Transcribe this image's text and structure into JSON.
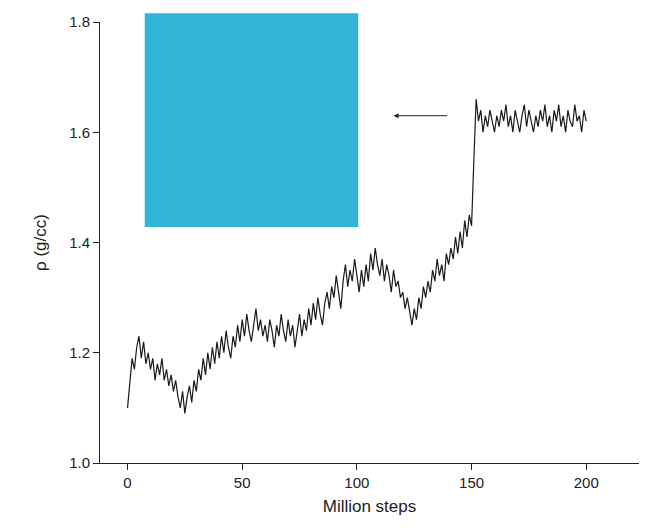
{
  "chart_data": {
    "type": "line",
    "x_label": "Million steps",
    "y_label": "ρ (g/cc)",
    "xlim": [
      -12,
      223
    ],
    "xticks": [
      0,
      50,
      100,
      150,
      200
    ],
    "ylim": [
      1,
      1.8
    ],
    "yticks": [
      {
        "value": 1,
        "label": "1.0"
      },
      1.2,
      1.4,
      1.6,
      1.8
    ],
    "grid": false,
    "color": "#1a1a1a",
    "x": [
      0,
      1,
      2,
      3,
      4,
      5,
      6,
      7,
      8,
      9,
      10,
      11,
      12,
      13,
      14,
      15,
      16,
      17,
      18,
      19,
      20,
      21,
      22,
      23,
      24,
      25,
      26,
      27,
      28,
      29,
      30,
      31,
      32,
      33,
      34,
      35,
      36,
      37,
      38,
      39,
      40,
      41,
      42,
      43,
      44,
      45,
      46,
      47,
      48,
      49,
      50,
      51,
      52,
      53,
      54,
      55,
      56,
      57,
      58,
      59,
      60,
      61,
      62,
      63,
      64,
      65,
      66,
      67,
      68,
      69,
      70,
      71,
      72,
      73,
      74,
      75,
      76,
      77,
      78,
      79,
      80,
      81,
      82,
      83,
      84,
      85,
      86,
      87,
      88,
      89,
      90,
      91,
      92,
      93,
      94,
      95,
      96,
      97,
      98,
      99,
      100,
      101,
      102,
      103,
      104,
      105,
      106,
      107,
      108,
      109,
      110,
      111,
      112,
      113,
      114,
      115,
      116,
      117,
      118,
      119,
      120,
      121,
      122,
      123,
      124,
      125,
      126,
      127,
      128,
      129,
      130,
      131,
      132,
      133,
      134,
      135,
      136,
      137,
      138,
      139,
      140,
      141,
      142,
      143,
      144,
      145,
      146,
      147,
      148,
      149,
      150,
      151,
      152,
      153,
      154,
      155,
      156,
      157,
      158,
      159,
      160,
      161,
      162,
      163,
      164,
      165,
      166,
      167,
      168,
      169,
      170,
      171,
      172,
      173,
      174,
      175,
      176,
      177,
      178,
      179,
      180,
      181,
      182,
      183,
      184,
      185,
      186,
      187,
      188,
      189,
      190,
      191,
      192,
      193,
      194,
      195,
      196,
      197,
      198,
      199,
      200
    ],
    "values": [
      1.1,
      1.15,
      1.19,
      1.17,
      1.21,
      1.23,
      1.19,
      1.22,
      1.18,
      1.2,
      1.17,
      1.19,
      1.15,
      1.18,
      1.16,
      1.19,
      1.15,
      1.17,
      1.14,
      1.16,
      1.13,
      1.15,
      1.12,
      1.1,
      1.13,
      1.09,
      1.12,
      1.14,
      1.11,
      1.15,
      1.13,
      1.17,
      1.15,
      1.19,
      1.16,
      1.2,
      1.17,
      1.21,
      1.18,
      1.22,
      1.19,
      1.23,
      1.2,
      1.24,
      1.21,
      1.19,
      1.23,
      1.21,
      1.25,
      1.22,
      1.26,
      1.23,
      1.27,
      1.24,
      1.22,
      1.25,
      1.28,
      1.24,
      1.26,
      1.23,
      1.25,
      1.22,
      1.26,
      1.24,
      1.21,
      1.25,
      1.23,
      1.27,
      1.24,
      1.22,
      1.26,
      1.23,
      1.25,
      1.21,
      1.24,
      1.27,
      1.23,
      1.26,
      1.24,
      1.28,
      1.25,
      1.29,
      1.26,
      1.3,
      1.27,
      1.25,
      1.29,
      1.31,
      1.28,
      1.32,
      1.3,
      1.34,
      1.31,
      1.28,
      1.33,
      1.36,
      1.32,
      1.35,
      1.33,
      1.37,
      1.34,
      1.31,
      1.35,
      1.32,
      1.36,
      1.33,
      1.38,
      1.35,
      1.39,
      1.36,
      1.34,
      1.37,
      1.33,
      1.36,
      1.34,
      1.31,
      1.35,
      1.32,
      1.33,
      1.3,
      1.31,
      1.28,
      1.3,
      1.27,
      1.25,
      1.28,
      1.26,
      1.3,
      1.28,
      1.32,
      1.3,
      1.33,
      1.31,
      1.35,
      1.33,
      1.37,
      1.34,
      1.36,
      1.33,
      1.38,
      1.36,
      1.39,
      1.37,
      1.41,
      1.38,
      1.42,
      1.39,
      1.44,
      1.41,
      1.45,
      1.43,
      1.55,
      1.66,
      1.62,
      1.64,
      1.6,
      1.63,
      1.61,
      1.64,
      1.62,
      1.6,
      1.63,
      1.61,
      1.64,
      1.62,
      1.65,
      1.61,
      1.63,
      1.6,
      1.64,
      1.62,
      1.6,
      1.63,
      1.65,
      1.61,
      1.64,
      1.62,
      1.6,
      1.63,
      1.61,
      1.64,
      1.62,
      1.65,
      1.61,
      1.63,
      1.6,
      1.64,
      1.62,
      1.65,
      1.61,
      1.63,
      1.6,
      1.64,
      1.62,
      1.61,
      1.65,
      1.62,
      1.63,
      1.6,
      1.64,
      1.62
    ]
  }
}
